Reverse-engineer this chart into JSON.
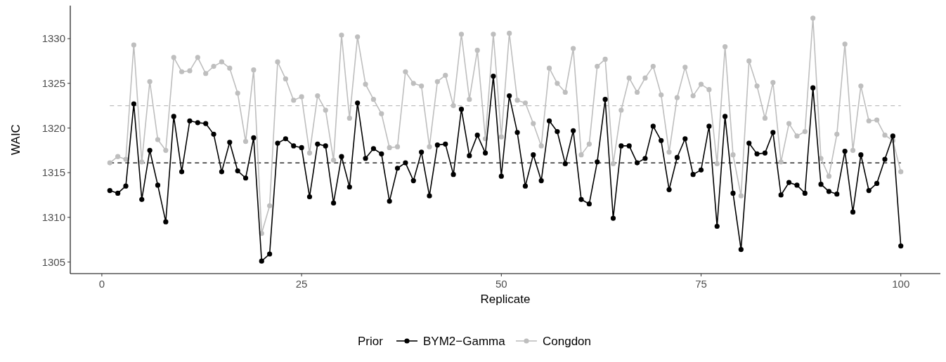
{
  "chart_data": {
    "type": "line",
    "xlabel": "Replicate",
    "ylabel": "WAIC",
    "legend_title": "Prior",
    "legend": "bottom",
    "grid": false,
    "marker": "circle",
    "line_style": "solid",
    "x": [
      1,
      2,
      3,
      4,
      5,
      6,
      7,
      8,
      9,
      10,
      11,
      12,
      13,
      14,
      15,
      16,
      17,
      18,
      19,
      20,
      21,
      22,
      23,
      24,
      25,
      26,
      27,
      28,
      29,
      30,
      31,
      32,
      33,
      34,
      35,
      36,
      37,
      38,
      39,
      40,
      41,
      42,
      43,
      44,
      45,
      46,
      47,
      48,
      49,
      50,
      51,
      52,
      53,
      54,
      55,
      56,
      57,
      58,
      59,
      60,
      61,
      62,
      63,
      64,
      65,
      66,
      67,
      68,
      69,
      70,
      71,
      72,
      73,
      74,
      75,
      76,
      77,
      78,
      79,
      80,
      81,
      82,
      83,
      84,
      85,
      86,
      87,
      88,
      89,
      90,
      91,
      92,
      93,
      94,
      95,
      96,
      97,
      98,
      99,
      100
    ],
    "xlim": [
      -3.95,
      104.95
    ],
    "xticks": [
      0,
      25,
      50,
      75,
      100
    ],
    "ylim": [
      1303.7,
      1333.7
    ],
    "yticks": [
      1305,
      1310,
      1315,
      1320,
      1325,
      1330
    ],
    "ref_lines": [
      {
        "axis": "y",
        "value": 1316.1,
        "color": "#000000",
        "line_style": "dashed"
      },
      {
        "axis": "y",
        "value": 1322.5,
        "color": "#bebebe",
        "line_style": "dashed"
      }
    ],
    "series": [
      {
        "name": "Congdon",
        "color": "#bebebe",
        "values": [
          1316.1,
          1316.8,
          1316.5,
          1329.3,
          1316.2,
          1325.2,
          1318.7,
          1317.5,
          1327.9,
          1326.3,
          1326.4,
          1327.9,
          1326.1,
          1326.9,
          1327.4,
          1326.7,
          1323.9,
          1318.5,
          1326.5,
          1308.2,
          1311.3,
          1327.4,
          1325.5,
          1323.1,
          1323.5,
          1317.2,
          1323.6,
          1322.0,
          1316.4,
          1330.4,
          1321.1,
          1330.2,
          1324.9,
          1323.2,
          1321.6,
          1317.8,
          1317.9,
          1326.3,
          1325.0,
          1324.7,
          1317.9,
          1325.2,
          1325.9,
          1322.5,
          1330.5,
          1323.2,
          1328.7,
          1318.8,
          1330.5,
          1319.0,
          1330.6,
          1323.1,
          1322.8,
          1320.5,
          1318.0,
          1326.7,
          1325.0,
          1324.0,
          1328.9,
          1317.0,
          1318.2,
          1326.9,
          1327.7,
          1316.0,
          1322.0,
          1325.6,
          1324.0,
          1325.6,
          1326.9,
          1323.7,
          1317.3,
          1323.4,
          1326.8,
          1323.6,
          1324.9,
          1324.3,
          1316.0,
          1329.1,
          1317.0,
          1312.4,
          1327.5,
          1324.7,
          1321.1,
          1325.1,
          1316.2,
          1320.5,
          1319.1,
          1319.6,
          1332.3,
          1316.6,
          1314.6,
          1319.3,
          1329.4,
          1317.5,
          1324.7,
          1320.8,
          1320.9,
          1319.2,
          1318.6,
          1315.1
        ]
      },
      {
        "name": "BYM2−Gamma",
        "color": "#000000",
        "values": [
          1313.0,
          1312.7,
          1313.5,
          1322.7,
          1312.0,
          1317.5,
          1313.6,
          1309.5,
          1321.3,
          1315.1,
          1320.8,
          1320.6,
          1320.5,
          1319.3,
          1315.1,
          1318.4,
          1315.2,
          1314.4,
          1318.9,
          1305.1,
          1305.9,
          1318.3,
          1318.8,
          1318.0,
          1317.8,
          1312.3,
          1318.2,
          1318.0,
          1311.6,
          1316.8,
          1313.4,
          1322.8,
          1316.6,
          1317.7,
          1317.1,
          1311.8,
          1315.5,
          1316.1,
          1314.1,
          1317.3,
          1312.4,
          1318.1,
          1318.2,
          1314.8,
          1322.1,
          1316.9,
          1319.2,
          1317.2,
          1325.8,
          1314.6,
          1323.6,
          1319.5,
          1313.5,
          1317.0,
          1314.1,
          1320.8,
          1319.6,
          1316.0,
          1319.7,
          1312.0,
          1311.5,
          1316.2,
          1323.2,
          1309.9,
          1318.0,
          1318.0,
          1316.1,
          1316.6,
          1320.2,
          1318.6,
          1313.1,
          1316.7,
          1318.8,
          1314.8,
          1315.3,
          1320.2,
          1309.0,
          1321.3,
          1312.7,
          1306.4,
          1318.3,
          1317.1,
          1317.2,
          1319.5,
          1312.5,
          1313.9,
          1313.6,
          1312.7,
          1324.5,
          1313.7,
          1312.9,
          1312.6,
          1317.4,
          1310.6,
          1317.0,
          1313.0,
          1313.8,
          1316.5,
          1319.1,
          1306.8
        ]
      }
    ]
  }
}
